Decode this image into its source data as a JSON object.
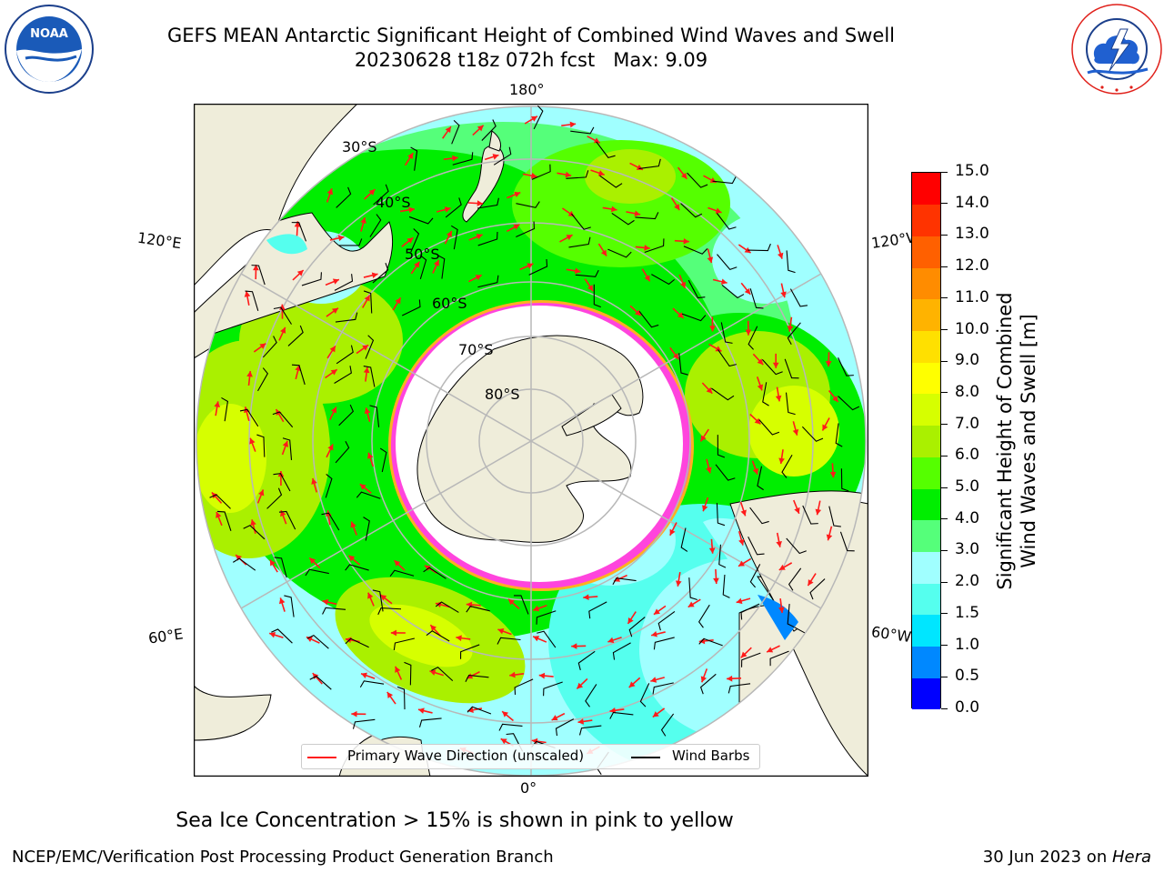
{
  "header": {
    "title_line1": "GEFS MEAN Antarctic Significant Height of Combined Wind Waves and Swell",
    "title_line2": "20230628 t18z 072h fcst   Max: 9.09"
  },
  "logos": {
    "noaa": {
      "text": "NOAA",
      "ring_text": "NATIONAL OCEANIC AND ATMOSPHERIC ADMINISTRATION",
      "ring_text_bottom": "U.S. DEPARTMENT OF COMMERCE"
    },
    "nws": {
      "ring_text": "NATIONAL WEATHER SERVICE"
    }
  },
  "map": {
    "longitude_labels": {
      "top": "180°",
      "bottom": "0°",
      "left_upper": "120°E",
      "left_lower": "60°E",
      "right_upper": "120°W",
      "right_lower": "60°W"
    },
    "latitude_labels": [
      "30°S",
      "40°S",
      "50°S",
      "60°S",
      "70°S",
      "80°S"
    ],
    "legend": {
      "wave_direction": "Primary Wave Direction (unscaled)",
      "wind_barbs": "Wind Barbs"
    },
    "colors": {
      "land": "#efedda",
      "ice": "#ffffff",
      "ice_edge": "#ff44dd",
      "ice_edge_outer": "#ffb020",
      "grid": "#b8b8b8",
      "arrow": "#ff1a1a"
    }
  },
  "colorbar": {
    "title_line1": "Significant Height of Combined",
    "title_line2": "Wind Waves and Swell [m]",
    "tick_labels": [
      "0.0",
      "0.5",
      "1.0",
      "1.5",
      "2.0",
      "3.0",
      "4.0",
      "5.0",
      "6.0",
      "7.0",
      "8.0",
      "9.0",
      "10.0",
      "11.0",
      "12.0",
      "13.0",
      "14.0",
      "15.0"
    ],
    "colors": [
      "#0000ff",
      "#0088ff",
      "#00e6ff",
      "#55ffee",
      "#a0ffff",
      "#55ff7a",
      "#00ee00",
      "#55ff00",
      "#aaf000",
      "#d6ff00",
      "#ffff00",
      "#ffe000",
      "#ffb300",
      "#ff8c00",
      "#ff6000",
      "#ff3300",
      "#ff0000"
    ]
  },
  "footer": {
    "sea_ice_note": "Sea Ice Concentration > 15% is shown in pink to yellow",
    "branch": "NCEP/EMC/Verification Post Processing Product Generation Branch",
    "date": "30 Jun 2023 on ",
    "machine": "Hera"
  }
}
